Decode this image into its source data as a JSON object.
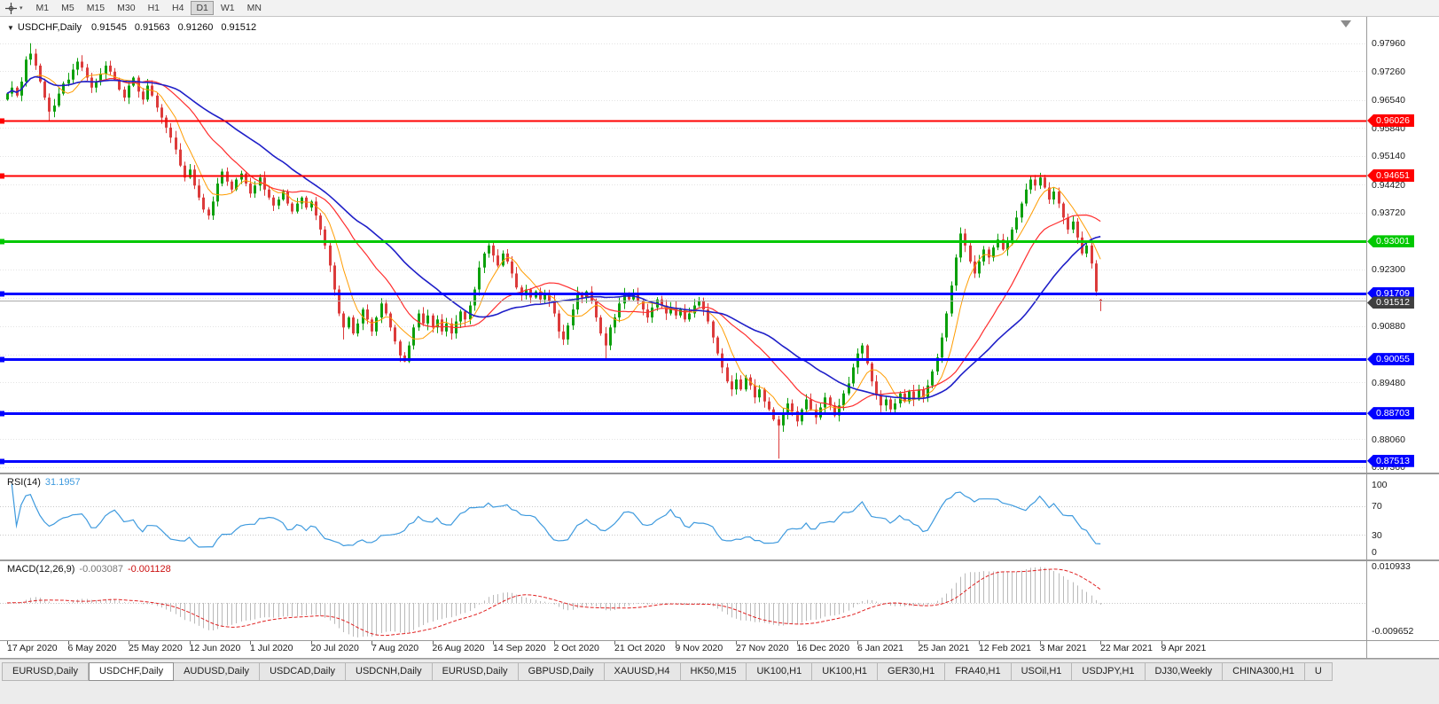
{
  "toolbar": {
    "timeframes": [
      "M1",
      "M5",
      "M15",
      "M30",
      "H1",
      "H4",
      "D1",
      "W1",
      "MN"
    ],
    "active_timeframe": "D1"
  },
  "chart": {
    "symbol_title": "USDCHF,Daily",
    "open": "0.91545",
    "high": "0.91563",
    "low": "0.91260",
    "close": "0.91512"
  },
  "price_axis": {
    "ticks": [
      "0.97960",
      "0.97260",
      "0.96540",
      "0.95840",
      "0.95140",
      "0.94420",
      "0.93720",
      "0.92300",
      "0.90880",
      "0.89480",
      "0.88060",
      "0.87360"
    ]
  },
  "rsi_panel": {
    "name": "RSI(14)",
    "value": "31.1957",
    "axis": [
      "100",
      "70",
      "30",
      "0"
    ],
    "line_color": "#3e9ade"
  },
  "macd_panel": {
    "name": "MACD(12,26,9)",
    "main_value": "-0.003087",
    "signal_value": "-0.001128",
    "axis_max": "0.010933",
    "axis_min": "-0.009652",
    "hist_color": "#b9b9b9",
    "signal_color": "#e02020"
  },
  "date_axis": {
    "labels": [
      "17 Apr 2020",
      "6 May 2020",
      "25 May 2020",
      "12 Jun 2020",
      "1 Jul 2020",
      "20 Jul 2020",
      "7 Aug 2020",
      "26 Aug 2020",
      "14 Sep 2020",
      "2 Oct 2020",
      "21 Oct 2020",
      "9 Nov 2020",
      "27 Nov 2020",
      "16 Dec 2020",
      "6 Jan 2021",
      "25 Jan 2021",
      "12 Feb 2021",
      "3 Mar 2021",
      "22 Mar 2021",
      "9 Apr 2021"
    ]
  },
  "tabs": [
    {
      "label": "EURUSD,Daily"
    },
    {
      "label": "USDCHF,Daily",
      "active": true
    },
    {
      "label": "AUDUSD,Daily"
    },
    {
      "label": "USDCAD,Daily"
    },
    {
      "label": "USDCNH,Daily"
    },
    {
      "label": "EURUSD,Daily"
    },
    {
      "label": "GBPUSD,Daily"
    },
    {
      "label": "XAUUSD,H4"
    },
    {
      "label": "HK50,M15"
    },
    {
      "label": "UK100,H1"
    },
    {
      "label": "UK100,H1"
    },
    {
      "label": "GER30,H1"
    },
    {
      "label": "FRA40,H1"
    },
    {
      "label": "USOil,H1"
    },
    {
      "label": "USDJPY,H1"
    },
    {
      "label": "DJ30,Weekly"
    },
    {
      "label": "CHINA300,H1"
    },
    {
      "label": "U"
    }
  ],
  "chart_data": {
    "type": "candlestick",
    "symbol": "USDCHF",
    "period": "Daily",
    "ohlc_current": {
      "open": 0.91545,
      "high": 0.91563,
      "low": 0.9126,
      "close": 0.91512
    },
    "ylim": [
      0.8722,
      0.9862
    ],
    "up_color": "#0ca00c",
    "down_color": "#dc3b3b",
    "first_open": 0.9655,
    "closes": [
      0.967,
      0.9685,
      0.9665,
      0.97,
      0.9755,
      0.977,
      0.974,
      0.97,
      0.966,
      0.9625,
      0.964,
      0.967,
      0.9695,
      0.9705,
      0.973,
      0.975,
      0.9735,
      0.971,
      0.9685,
      0.97,
      0.972,
      0.974,
      0.9725,
      0.9705,
      0.968,
      0.966,
      0.969,
      0.971,
      0.9675,
      0.9655,
      0.969,
      0.9665,
      0.9635,
      0.961,
      0.9585,
      0.956,
      0.953,
      0.949,
      0.946,
      0.948,
      0.944,
      0.941,
      0.938,
      0.9365,
      0.94,
      0.9445,
      0.9475,
      0.945,
      0.943,
      0.9455,
      0.947,
      0.9445,
      0.942,
      0.944,
      0.946,
      0.943,
      0.941,
      0.939,
      0.9405,
      0.9425,
      0.9395,
      0.9375,
      0.9395,
      0.941,
      0.9385,
      0.94,
      0.9365,
      0.933,
      0.929,
      0.924,
      0.918,
      0.912,
      0.9085,
      0.911,
      0.907,
      0.9095,
      0.913,
      0.9105,
      0.9075,
      0.911,
      0.9145,
      0.912,
      0.9085,
      0.905,
      0.9015,
      0.9,
      0.904,
      0.9085,
      0.912,
      0.9095,
      0.9115,
      0.9085,
      0.9105,
      0.9075,
      0.9095,
      0.907,
      0.91,
      0.9125,
      0.9105,
      0.914,
      0.918,
      0.9235,
      0.927,
      0.929,
      0.9265,
      0.924,
      0.927,
      0.925,
      0.922,
      0.9185,
      0.9165,
      0.918,
      0.916,
      0.9175,
      0.9155,
      0.917,
      0.915,
      0.912,
      0.9075,
      0.9055,
      0.909,
      0.913,
      0.917,
      0.916,
      0.9175,
      0.915,
      0.911,
      0.907,
      0.904,
      0.9085,
      0.911,
      0.9145,
      0.917,
      0.9155,
      0.917,
      0.915,
      0.913,
      0.911,
      0.9135,
      0.9155,
      0.914,
      0.912,
      0.9135,
      0.9115,
      0.913,
      0.9105,
      0.912,
      0.914,
      0.915,
      0.913,
      0.91,
      0.906,
      0.902,
      0.8985,
      0.895,
      0.893,
      0.8955,
      0.893,
      0.896,
      0.894,
      0.891,
      0.893,
      0.89,
      0.888,
      0.8855,
      0.884,
      0.887,
      0.8895,
      0.8875,
      0.885,
      0.888,
      0.8905,
      0.888,
      0.886,
      0.8885,
      0.891,
      0.889,
      0.8865,
      0.889,
      0.892,
      0.8945,
      0.8985,
      0.902,
      0.904,
      0.8995,
      0.895,
      0.8915,
      0.889,
      0.8905,
      0.888,
      0.8895,
      0.892,
      0.89,
      0.8925,
      0.8905,
      0.893,
      0.891,
      0.894,
      0.8975,
      0.901,
      0.906,
      0.912,
      0.919,
      0.926,
      0.932,
      0.929,
      0.925,
      0.922,
      0.925,
      0.928,
      0.926,
      0.9285,
      0.9305,
      0.928,
      0.93,
      0.933,
      0.936,
      0.9395,
      0.943,
      0.9455,
      0.944,
      0.946,
      0.9435,
      0.9405,
      0.9425,
      0.9395,
      0.936,
      0.933,
      0.935,
      0.931,
      0.927,
      0.929,
      0.9245,
      0.9175,
      0.91512
    ],
    "wick_overrides": {
      "5": {
        "h": 0.9796
      },
      "9": {
        "l": 0.9601
      },
      "43": {
        "l": 0.9355
      },
      "72": {
        "l": 0.9055
      },
      "85": {
        "l": 0.8998
      },
      "103": {
        "h": 0.9296
      },
      "128": {
        "l": 0.9003
      },
      "165": {
        "l": 0.8757
      },
      "183": {
        "h": 0.9046
      },
      "221": {
        "h": 0.9472
      },
      "234": {
        "o": 0.91545,
        "h": 0.91563,
        "l": 0.9126,
        "c": 0.91512
      }
    },
    "moving_averages": [
      {
        "period": 7,
        "color": "#ff9c00",
        "width": 1
      },
      {
        "period": 20,
        "color": "#ff2d2d",
        "width": 1.2
      },
      {
        "period": 34,
        "color": "#1f1fc8",
        "width": 1.6
      }
    ],
    "grid_prices": [
      0.9796,
      0.9726,
      0.9654,
      0.9584,
      0.9514,
      0.9442,
      0.9372,
      0.9302,
      0.923,
      0.916,
      0.9088,
      0.9018,
      0.8948,
      0.8878,
      0.8806,
      0.8736
    ],
    "hlines": [
      {
        "price": 0.96026,
        "label": "0.96026",
        "color": "#ff0000",
        "width": 2
      },
      {
        "price": 0.94651,
        "label": "0.94651",
        "color": "#ff0000",
        "width": 2
      },
      {
        "price": 0.93001,
        "label": "0.93001",
        "color": "#00c800",
        "width": 3
      },
      {
        "price": 0.91709,
        "label": "0.91709",
        "color": "#0000ff",
        "width": 3
      },
      {
        "price": 0.90055,
        "label": "0.90055",
        "color": "#0000ff",
        "width": 3
      },
      {
        "price": 0.88703,
        "label": "0.88703",
        "color": "#0000ff",
        "width": 3
      },
      {
        "price": 0.87513,
        "label": "0.87513",
        "color": "#0000ff",
        "width": 3
      }
    ],
    "current_price": {
      "value": 0.91512,
      "label": "0.91512",
      "line_color": "#aaaaaa",
      "tag_color": "#404040"
    },
    "rsi": {
      "period": 14,
      "levels": [
        70,
        30
      ]
    },
    "macd": {
      "fast": 12,
      "slow": 26,
      "signal": 9,
      "ylim": [
        -0.009652,
        0.010933
      ]
    }
  }
}
